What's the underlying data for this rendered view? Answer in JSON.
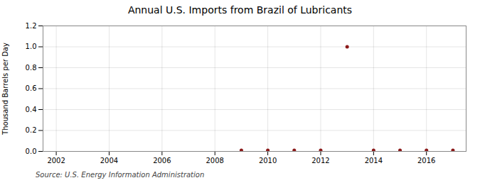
{
  "chart_data": {
    "type": "scatter",
    "title": "Annual U.S. Imports from Brazil of Lubricants",
    "ylabel": "Thousand Barrels per Day",
    "annotation": "Source: U.S. Energy Information Administration",
    "x": [
      2009,
      2010,
      2011,
      2012,
      2013,
      2014,
      2015,
      2016,
      2017
    ],
    "values": [
      0.01,
      0.01,
      0.01,
      0.01,
      1.0,
      0.01,
      0.01,
      0.01,
      0.01
    ],
    "color": "#8b1a1a",
    "xlim": [
      2001.5,
      2017.5
    ],
    "xticks": [
      2002,
      2004,
      2006,
      2008,
      2010,
      2012,
      2014,
      2016
    ],
    "ylim": [
      0,
      1.2
    ],
    "yticks": [
      {
        "value": 0,
        "label": "0.0"
      },
      0.2,
      0.4,
      0.6,
      0.8,
      {
        "value": 1,
        "label": "1.0"
      },
      1.2
    ],
    "grid": true
  }
}
